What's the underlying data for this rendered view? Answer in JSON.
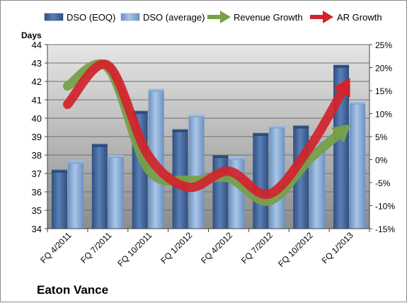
{
  "company": "Eaton Vance",
  "chart_data": {
    "type": "bar",
    "title": "",
    "ylabel": "Days",
    "xlabel": "",
    "categories": [
      "FQ 4/2011",
      "FQ 7/2011",
      "FQ 10/2011",
      "FQ 1/2012",
      "FQ 4/2012",
      "FQ 7/2012",
      "FQ 10/2012",
      "FQ 1/2013"
    ],
    "series": [
      {
        "name": "DSO (EOQ)",
        "kind": "bar",
        "axis": "left",
        "color": "#4a6fa5",
        "values": [
          37.2,
          38.6,
          40.4,
          39.4,
          38.0,
          39.2,
          39.6,
          42.9
        ]
      },
      {
        "name": "DSO (average)",
        "kind": "bar",
        "axis": "left",
        "color": "#8eb0d8",
        "values": [
          37.7,
          38.0,
          41.6,
          40.2,
          37.9,
          39.6,
          38.8,
          40.9
        ]
      },
      {
        "name": "Revenue Growth",
        "kind": "arrow",
        "axis": "right",
        "color": "#77a04a",
        "values": [
          16.0,
          20.0,
          -2.0,
          -4.5,
          -4.0,
          -9.0,
          0.0,
          7.5
        ]
      },
      {
        "name": "AR Growth",
        "kind": "arrow",
        "axis": "right",
        "color": "#d2232a",
        "values": [
          12.0,
          20.5,
          1.0,
          -6.0,
          -2.5,
          -7.5,
          2.5,
          17.5
        ]
      }
    ],
    "ylim": [
      34,
      44
    ],
    "yticks": [
      "34",
      "35",
      "36",
      "37",
      "38",
      "39",
      "40",
      "41",
      "42",
      "43",
      "44"
    ],
    "y2lim": [
      -15,
      25
    ],
    "y2ticks": [
      "-15%",
      "-10%",
      "-5%",
      "0%",
      "5%",
      "10%",
      "15%",
      "20%",
      "25%"
    ],
    "grid": true,
    "legend": "top"
  }
}
